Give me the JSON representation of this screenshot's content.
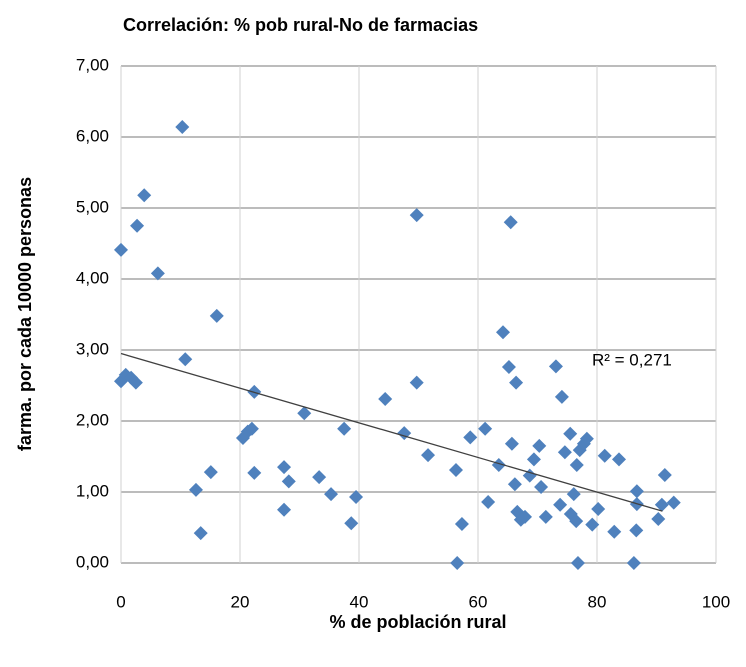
{
  "chart_data": {
    "type": "scatter",
    "title": "Correlación: % pob rural-No de farmacias",
    "x_label": "% de población rural",
    "y_label": "farma. por cada 10000 personas",
    "annotation": "R² = 0,271",
    "color": "#4f81bd",
    "grid": true,
    "xlim": [
      0,
      100
    ],
    "xticks": [
      0,
      20,
      40,
      60,
      80,
      100
    ],
    "ylim": [
      0,
      7
    ],
    "yticks": [
      {
        "value": 0,
        "label": "0,00"
      },
      {
        "value": 1,
        "label": "1,00"
      },
      {
        "value": 2,
        "label": "2,00"
      },
      {
        "value": 3,
        "label": "3,00"
      },
      {
        "value": 4,
        "label": "4,00"
      },
      {
        "value": 5,
        "label": "5,00"
      },
      {
        "value": 6,
        "label": "6,00"
      },
      {
        "value": 7,
        "label": "7,00"
      }
    ],
    "x": [
      0,
      0,
      0.8,
      1.7,
      2.5,
      2.7,
      3.9,
      6.2,
      10.3,
      10.8,
      12.6,
      13.4,
      15.1,
      16.1,
      20.5,
      21.3,
      22.0,
      22.4,
      22.4,
      27.4,
      27.4,
      28.2,
      30.8,
      33.3,
      35.3,
      37.5,
      38.7,
      39.5,
      44.4,
      47.6,
      49.7,
      49.7,
      51.6,
      56.3,
      56.5,
      57.3,
      58.7,
      61.2,
      61.7,
      63.5,
      64.2,
      65.2,
      65.5,
      65.7,
      66.2,
      66.4,
      66.6,
      67.2,
      67.9,
      68.7,
      69.4,
      70.3,
      70.6,
      71.4,
      73.1,
      73.8,
      74.1,
      74.6,
      75.5,
      75.6,
      76.1,
      76.5,
      76.6,
      76.8,
      77.1,
      77.8,
      78.3,
      79.2,
      80.2,
      81.3,
      82.9,
      83.7,
      86.2,
      86.6,
      86.7,
      86.7,
      90.3,
      90.9,
      91.4,
      92.9
    ],
    "values": [
      4.41,
      2.56,
      2.65,
      2.61,
      2.54,
      4.75,
      5.18,
      4.08,
      6.14,
      2.87,
      1.03,
      0.42,
      1.28,
      3.48,
      1.76,
      1.85,
      1.89,
      2.41,
      1.27,
      1.35,
      0.75,
      1.15,
      2.11,
      1.21,
      0.97,
      1.89,
      0.56,
      0.93,
      2.31,
      1.83,
      2.54,
      4.9,
      1.52,
      1.31,
      0,
      0.55,
      1.77,
      1.89,
      0.86,
      1.38,
      3.25,
      2.76,
      4.8,
      1.68,
      1.11,
      2.54,
      0.72,
      0.61,
      0.65,
      1.23,
      1.46,
      1.65,
      1.07,
      0.65,
      2.77,
      0.82,
      2.34,
      1.56,
      1.82,
      0.69,
      0.97,
      0.59,
      1.38,
      0,
      1.59,
      1.68,
      1.75,
      0.54,
      0.76,
      1.51,
      0.44,
      1.46,
      0,
      0.46,
      1.01,
      0.83,
      0.62,
      0.82,
      1.24,
      0.85
    ],
    "trendline": {
      "x": [
        0,
        91
      ],
      "values": [
        2.95,
        0.73
      ],
      "color": "#404040"
    }
  }
}
